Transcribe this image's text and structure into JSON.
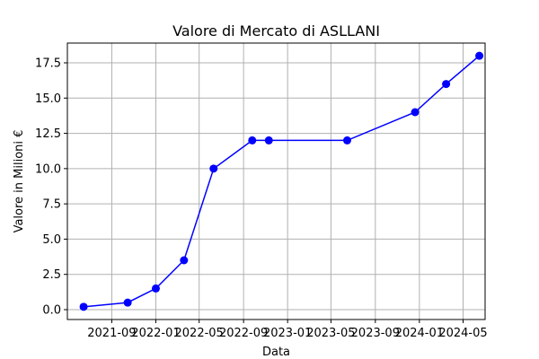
{
  "chart_data": {
    "type": "line",
    "title": "Valore di Mercato di ASLLANI",
    "xlabel": "Data",
    "ylabel": "Valore in Milioni €",
    "grid": true,
    "x_axis_type": "date",
    "xlim": [
      "2021-05-01",
      "2024-07-01"
    ],
    "ylim": [
      -0.7,
      18.9
    ],
    "x_tick_values": [
      "2021-09-01",
      "2022-01-01",
      "2022-05-01",
      "2022-09-01",
      "2023-01-01",
      "2023-05-01",
      "2023-09-01",
      "2024-01-01",
      "2024-05-01"
    ],
    "x_tick_labels": [
      "2021-09",
      "2022-01",
      "2022-05",
      "2022-09",
      "2023-01",
      "2023-05",
      "2023-09",
      "2024-01",
      "2024-05"
    ],
    "y_ticks": [
      0.0,
      2.5,
      5.0,
      7.5,
      10.0,
      12.5,
      15.0,
      17.5
    ],
    "y_tick_labels": [
      "0.0",
      "2.5",
      "5.0",
      "7.5",
      "10.0",
      "12.5",
      "15.0",
      "17.5"
    ],
    "series": [
      {
        "color": "#0000ff",
        "marker": "circle",
        "x": [
          "2021-06-15",
          "2021-10-15",
          "2022-01-01",
          "2022-03-20",
          "2022-06-10",
          "2022-09-25",
          "2022-11-10",
          "2023-06-15",
          "2023-12-20",
          "2024-03-15",
          "2024-06-15"
        ],
        "y": [
          0.2,
          0.5,
          1.5,
          3.5,
          10.0,
          12.0,
          12.0,
          12.0,
          14.0,
          16.0,
          18.0
        ]
      }
    ]
  }
}
